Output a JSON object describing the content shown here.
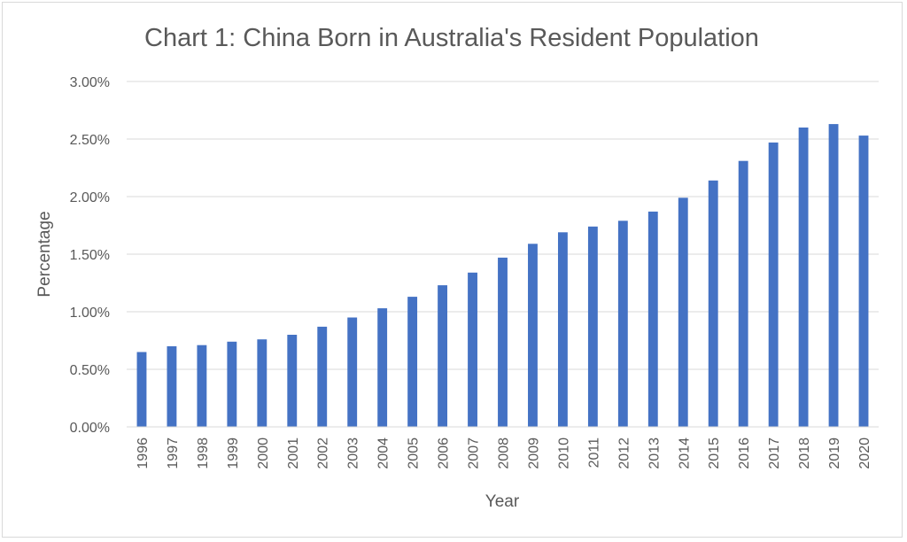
{
  "chart_data": {
    "type": "bar",
    "title": "Chart 1: China Born in Australia's Resident Population",
    "xlabel": "Year",
    "ylabel": "Percentage",
    "ylim": [
      0,
      0.03
    ],
    "yticks": [
      "0.00%",
      "0.50%",
      "1.00%",
      "1.50%",
      "2.00%",
      "2.50%",
      "3.00%"
    ],
    "grid": "horizontal",
    "legend": "none",
    "bar_color": "#4472C4",
    "categories": [
      "1996",
      "1997",
      "1998",
      "1999",
      "2000",
      "2001",
      "2002",
      "2003",
      "2004",
      "2005",
      "2006",
      "2007",
      "2008",
      "2009",
      "2010",
      "2011",
      "2012",
      "2013",
      "2014",
      "2015",
      "2016",
      "2017",
      "2018",
      "2019",
      "2020"
    ],
    "values": [
      0.0065,
      0.007,
      0.0071,
      0.0074,
      0.0076,
      0.008,
      0.0087,
      0.0095,
      0.0103,
      0.0113,
      0.0123,
      0.0134,
      0.0147,
      0.0159,
      0.0169,
      0.0174,
      0.0179,
      0.0187,
      0.0199,
      0.0214,
      0.0231,
      0.0247,
      0.026,
      0.0263,
      0.0253
    ]
  }
}
